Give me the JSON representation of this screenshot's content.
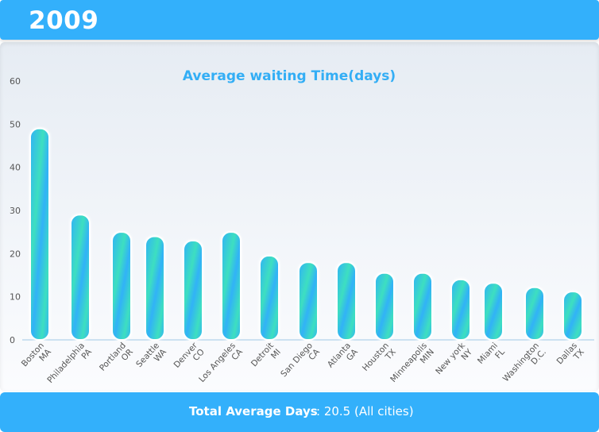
{
  "header": {
    "year": "2009"
  },
  "footer": {
    "label": "Total Average Days",
    "value": ": 20.5 (All cities)"
  },
  "colors": {
    "accent": "#33b0fb",
    "bar_blue": "#31b2f7",
    "bar_teal": "#3ddfc0",
    "title": "#33aef5",
    "axis_text": "#555555"
  },
  "chart_data": {
    "type": "bar",
    "title": "Average waiting Time(days)",
    "xlabel": "",
    "ylabel": "",
    "ylim": [
      0,
      60
    ],
    "yticks": [
      0,
      10,
      20,
      30,
      40,
      50,
      60
    ],
    "grid": false,
    "categories": [
      [
        "Boston",
        "MA"
      ],
      [
        "Philadelphia",
        "PA"
      ],
      [
        "Portland",
        "OR"
      ],
      [
        "Seattle",
        "WA"
      ],
      [
        "Denver",
        "CO"
      ],
      [
        "Los Angeles",
        "CA"
      ],
      [
        "Detroit",
        "MI"
      ],
      [
        "San Diego",
        "CA"
      ],
      [
        "Atlanta",
        "GA"
      ],
      [
        "Houston",
        "TX"
      ],
      [
        "Minneapolis",
        "MIN"
      ],
      [
        "New york",
        "NY"
      ],
      [
        "Miami",
        "FL"
      ],
      [
        "Washington",
        "D.C."
      ],
      [
        "Dallas",
        "TX"
      ]
    ],
    "values": [
      49,
      29,
      25,
      24,
      23,
      25,
      19.5,
      18,
      18,
      15.5,
      15.5,
      14,
      13.2,
      12.2,
      11.2
    ]
  }
}
